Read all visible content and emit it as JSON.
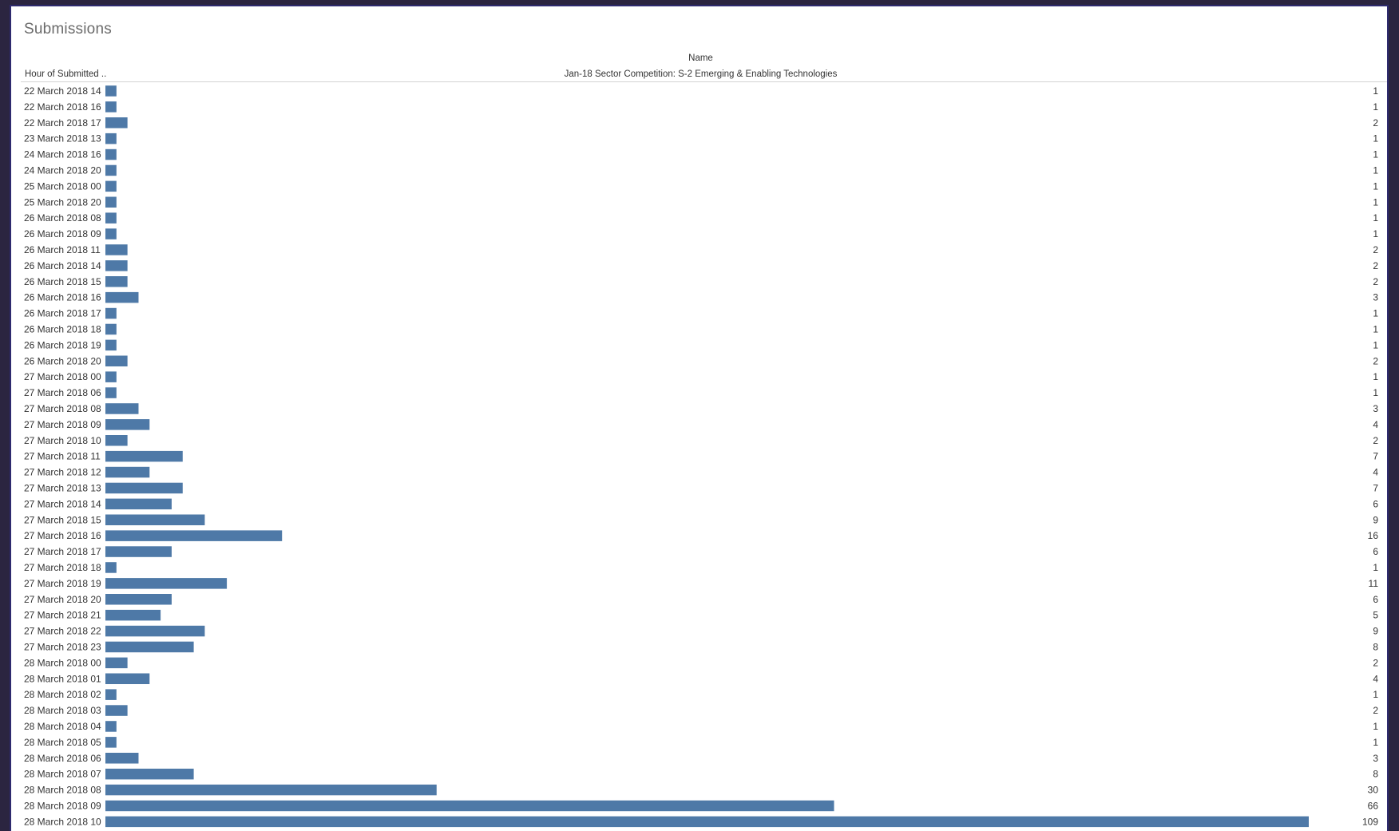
{
  "title": "Submissions",
  "column_header": {
    "field": "Name",
    "value": "Jan-18 Sector Competition: S-2 Emerging & Enabling Technologies"
  },
  "row_header": "Hour of Submitted ..",
  "colors": {
    "bar": "#4e79a7",
    "frame_border": "#2e2a6e",
    "backdrop": "#2b2540"
  },
  "chart_data": {
    "type": "bar",
    "orientation": "horizontal",
    "grid": false,
    "categories": [
      "22 March 2018 14",
      "22 March 2018 16",
      "22 March 2018 17",
      "23 March 2018 13",
      "24 March 2018 16",
      "24 March 2018 20",
      "25 March 2018 00",
      "25 March 2018 20",
      "26 March 2018 08",
      "26 March 2018 09",
      "26 March 2018 11",
      "26 March 2018 14",
      "26 March 2018 15",
      "26 March 2018 16",
      "26 March 2018 17",
      "26 March 2018 18",
      "26 March 2018 19",
      "26 March 2018 20",
      "27 March 2018 00",
      "27 March 2018 06",
      "27 March 2018 08",
      "27 March 2018 09",
      "27 March 2018 10",
      "27 March 2018 11",
      "27 March 2018 12",
      "27 March 2018 13",
      "27 March 2018 14",
      "27 March 2018 15",
      "27 March 2018 16",
      "27 March 2018 17",
      "27 March 2018 18",
      "27 March 2018 19",
      "27 March 2018 20",
      "27 March 2018 21",
      "27 March 2018 22",
      "27 March 2018 23",
      "28 March 2018 00",
      "28 March 2018 01",
      "28 March 2018 02",
      "28 March 2018 03",
      "28 March 2018 04",
      "28 March 2018 05",
      "28 March 2018 06",
      "28 March 2018 07",
      "28 March 2018 08",
      "28 March 2018 09",
      "28 March 2018 10"
    ],
    "values": [
      1,
      1,
      2,
      1,
      1,
      1,
      1,
      1,
      1,
      1,
      2,
      2,
      2,
      3,
      1,
      1,
      1,
      2,
      1,
      1,
      3,
      4,
      2,
      7,
      4,
      7,
      6,
      9,
      16,
      6,
      1,
      11,
      6,
      5,
      9,
      8,
      2,
      4,
      1,
      2,
      1,
      1,
      3,
      8,
      30,
      66,
      109
    ]
  }
}
